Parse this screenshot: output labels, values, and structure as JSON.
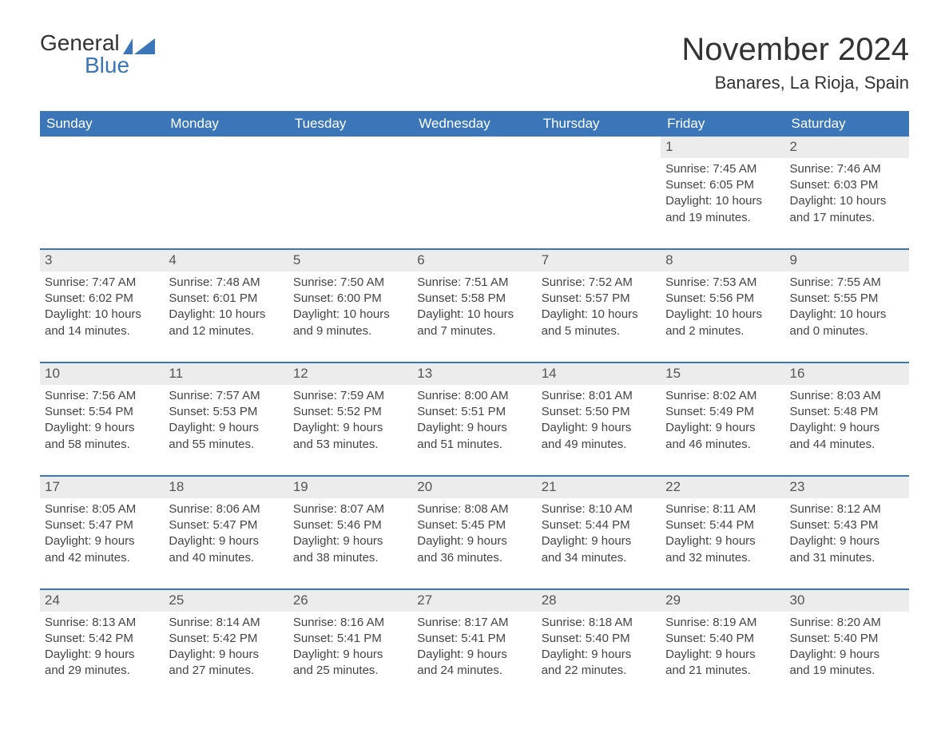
{
  "logo": {
    "word1": "General",
    "word2": "Blue"
  },
  "title": "November 2024",
  "location": "Banares, La Rioja, Spain",
  "colors": {
    "header_bg": "#3a76b8",
    "header_text": "#ffffff",
    "daynum_bg": "#ececec",
    "body_text": "#444444",
    "title_text": "#333333",
    "page_bg": "#ffffff",
    "row_border": "#3a76b8",
    "logo_blue": "#3a76b8"
  },
  "fonts": {
    "family": "Arial, Helvetica, sans-serif",
    "title_size_pt": 30,
    "location_size_pt": 17,
    "dow_size_pt": 13,
    "daynum_size_pt": 13,
    "body_size_pt": 11
  },
  "days_of_week": [
    "Sunday",
    "Monday",
    "Tuesday",
    "Wednesday",
    "Thursday",
    "Friday",
    "Saturday"
  ],
  "weeks": [
    [
      {
        "empty": true
      },
      {
        "empty": true
      },
      {
        "empty": true
      },
      {
        "empty": true
      },
      {
        "empty": true
      },
      {
        "day": "1",
        "sunrise": "Sunrise: 7:45 AM",
        "sunset": "Sunset: 6:05 PM",
        "dl1": "Daylight: 10 hours",
        "dl2": "and 19 minutes."
      },
      {
        "day": "2",
        "sunrise": "Sunrise: 7:46 AM",
        "sunset": "Sunset: 6:03 PM",
        "dl1": "Daylight: 10 hours",
        "dl2": "and 17 minutes."
      }
    ],
    [
      {
        "day": "3",
        "sunrise": "Sunrise: 7:47 AM",
        "sunset": "Sunset: 6:02 PM",
        "dl1": "Daylight: 10 hours",
        "dl2": "and 14 minutes."
      },
      {
        "day": "4",
        "sunrise": "Sunrise: 7:48 AM",
        "sunset": "Sunset: 6:01 PM",
        "dl1": "Daylight: 10 hours",
        "dl2": "and 12 minutes."
      },
      {
        "day": "5",
        "sunrise": "Sunrise: 7:50 AM",
        "sunset": "Sunset: 6:00 PM",
        "dl1": "Daylight: 10 hours",
        "dl2": "and 9 minutes."
      },
      {
        "day": "6",
        "sunrise": "Sunrise: 7:51 AM",
        "sunset": "Sunset: 5:58 PM",
        "dl1": "Daylight: 10 hours",
        "dl2": "and 7 minutes."
      },
      {
        "day": "7",
        "sunrise": "Sunrise: 7:52 AM",
        "sunset": "Sunset: 5:57 PM",
        "dl1": "Daylight: 10 hours",
        "dl2": "and 5 minutes."
      },
      {
        "day": "8",
        "sunrise": "Sunrise: 7:53 AM",
        "sunset": "Sunset: 5:56 PM",
        "dl1": "Daylight: 10 hours",
        "dl2": "and 2 minutes."
      },
      {
        "day": "9",
        "sunrise": "Sunrise: 7:55 AM",
        "sunset": "Sunset: 5:55 PM",
        "dl1": "Daylight: 10 hours",
        "dl2": "and 0 minutes."
      }
    ],
    [
      {
        "day": "10",
        "sunrise": "Sunrise: 7:56 AM",
        "sunset": "Sunset: 5:54 PM",
        "dl1": "Daylight: 9 hours",
        "dl2": "and 58 minutes."
      },
      {
        "day": "11",
        "sunrise": "Sunrise: 7:57 AM",
        "sunset": "Sunset: 5:53 PM",
        "dl1": "Daylight: 9 hours",
        "dl2": "and 55 minutes."
      },
      {
        "day": "12",
        "sunrise": "Sunrise: 7:59 AM",
        "sunset": "Sunset: 5:52 PM",
        "dl1": "Daylight: 9 hours",
        "dl2": "and 53 minutes."
      },
      {
        "day": "13",
        "sunrise": "Sunrise: 8:00 AM",
        "sunset": "Sunset: 5:51 PM",
        "dl1": "Daylight: 9 hours",
        "dl2": "and 51 minutes."
      },
      {
        "day": "14",
        "sunrise": "Sunrise: 8:01 AM",
        "sunset": "Sunset: 5:50 PM",
        "dl1": "Daylight: 9 hours",
        "dl2": "and 49 minutes."
      },
      {
        "day": "15",
        "sunrise": "Sunrise: 8:02 AM",
        "sunset": "Sunset: 5:49 PM",
        "dl1": "Daylight: 9 hours",
        "dl2": "and 46 minutes."
      },
      {
        "day": "16",
        "sunrise": "Sunrise: 8:03 AM",
        "sunset": "Sunset: 5:48 PM",
        "dl1": "Daylight: 9 hours",
        "dl2": "and 44 minutes."
      }
    ],
    [
      {
        "day": "17",
        "sunrise": "Sunrise: 8:05 AM",
        "sunset": "Sunset: 5:47 PM",
        "dl1": "Daylight: 9 hours",
        "dl2": "and 42 minutes."
      },
      {
        "day": "18",
        "sunrise": "Sunrise: 8:06 AM",
        "sunset": "Sunset: 5:47 PM",
        "dl1": "Daylight: 9 hours",
        "dl2": "and 40 minutes."
      },
      {
        "day": "19",
        "sunrise": "Sunrise: 8:07 AM",
        "sunset": "Sunset: 5:46 PM",
        "dl1": "Daylight: 9 hours",
        "dl2": "and 38 minutes."
      },
      {
        "day": "20",
        "sunrise": "Sunrise: 8:08 AM",
        "sunset": "Sunset: 5:45 PM",
        "dl1": "Daylight: 9 hours",
        "dl2": "and 36 minutes."
      },
      {
        "day": "21",
        "sunrise": "Sunrise: 8:10 AM",
        "sunset": "Sunset: 5:44 PM",
        "dl1": "Daylight: 9 hours",
        "dl2": "and 34 minutes."
      },
      {
        "day": "22",
        "sunrise": "Sunrise: 8:11 AM",
        "sunset": "Sunset: 5:44 PM",
        "dl1": "Daylight: 9 hours",
        "dl2": "and 32 minutes."
      },
      {
        "day": "23",
        "sunrise": "Sunrise: 8:12 AM",
        "sunset": "Sunset: 5:43 PM",
        "dl1": "Daylight: 9 hours",
        "dl2": "and 31 minutes."
      }
    ],
    [
      {
        "day": "24",
        "sunrise": "Sunrise: 8:13 AM",
        "sunset": "Sunset: 5:42 PM",
        "dl1": "Daylight: 9 hours",
        "dl2": "and 29 minutes."
      },
      {
        "day": "25",
        "sunrise": "Sunrise: 8:14 AM",
        "sunset": "Sunset: 5:42 PM",
        "dl1": "Daylight: 9 hours",
        "dl2": "and 27 minutes."
      },
      {
        "day": "26",
        "sunrise": "Sunrise: 8:16 AM",
        "sunset": "Sunset: 5:41 PM",
        "dl1": "Daylight: 9 hours",
        "dl2": "and 25 minutes."
      },
      {
        "day": "27",
        "sunrise": "Sunrise: 8:17 AM",
        "sunset": "Sunset: 5:41 PM",
        "dl1": "Daylight: 9 hours",
        "dl2": "and 24 minutes."
      },
      {
        "day": "28",
        "sunrise": "Sunrise: 8:18 AM",
        "sunset": "Sunset: 5:40 PM",
        "dl1": "Daylight: 9 hours",
        "dl2": "and 22 minutes."
      },
      {
        "day": "29",
        "sunrise": "Sunrise: 8:19 AM",
        "sunset": "Sunset: 5:40 PM",
        "dl1": "Daylight: 9 hours",
        "dl2": "and 21 minutes."
      },
      {
        "day": "30",
        "sunrise": "Sunrise: 8:20 AM",
        "sunset": "Sunset: 5:40 PM",
        "dl1": "Daylight: 9 hours",
        "dl2": "and 19 minutes."
      }
    ]
  ]
}
